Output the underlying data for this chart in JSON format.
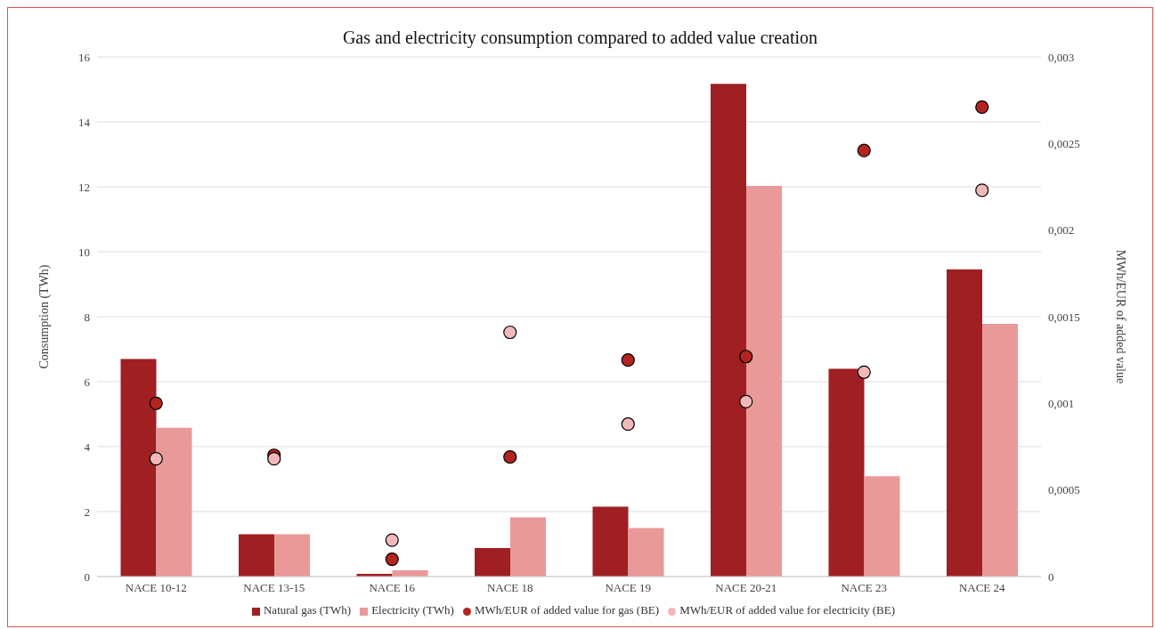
{
  "chart_data": {
    "type": "bar",
    "title": "Gas and electricity consumption compared to added value creation",
    "ylabel": "Consumption (TWh)",
    "y2label": "MWh/EUR of added value",
    "categories": [
      "NACE 10-12",
      "NACE 13-15",
      "NACE 16",
      "NACE 18",
      "NACE 19",
      "NACE 20-21",
      "NACE 23",
      "NACE 24"
    ],
    "series": [
      {
        "name": "Natural gas (TWh)",
        "color": "#a01f22",
        "values": [
          6.7,
          1.3,
          0.08,
          0.88,
          2.15,
          15.17,
          6.4,
          9.46
        ]
      },
      {
        "name": "Electricity (TWh)",
        "color": "#ea9999",
        "values": [
          4.58,
          1.3,
          0.19,
          1.82,
          1.49,
          12.03,
          3.09,
          7.78
        ]
      },
      {
        "name": "MWh/EUR of added value for gas (BE)",
        "type": "scatter",
        "axis": "y2",
        "color": "#b3241e",
        "values": [
          0.001,
          0.0007,
          0.0001,
          0.00069,
          0.00125,
          0.00127,
          0.00246,
          0.00271
        ]
      },
      {
        "name": "MWh/EUR of added value for electricity (BE)",
        "type": "scatter",
        "axis": "y2",
        "color": "#f2b8b8",
        "values": [
          0.00068,
          0.00068,
          0.00021,
          0.00141,
          0.00088,
          0.00101,
          0.00118,
          0.00223
        ]
      }
    ],
    "ylim": [
      0,
      16
    ],
    "yticks": [
      0,
      2,
      4,
      6,
      8,
      10,
      12,
      14,
      16
    ],
    "y2lim": [
      0,
      0.003
    ],
    "y2ticks": [
      {
        "value": 0,
        "label": "0"
      },
      {
        "value": 0.0005,
        "label": "0,0005"
      },
      {
        "value": 0.001,
        "label": "0,001"
      },
      {
        "value": 0.0015,
        "label": "0,0015"
      },
      {
        "value": 0.002,
        "label": "0,002"
      },
      {
        "value": 0.0025,
        "label": "0,0025"
      },
      {
        "value": 0.003,
        "label": "0,003"
      }
    ],
    "grid": "y",
    "legend": "bottom",
    "marker": "circle"
  }
}
